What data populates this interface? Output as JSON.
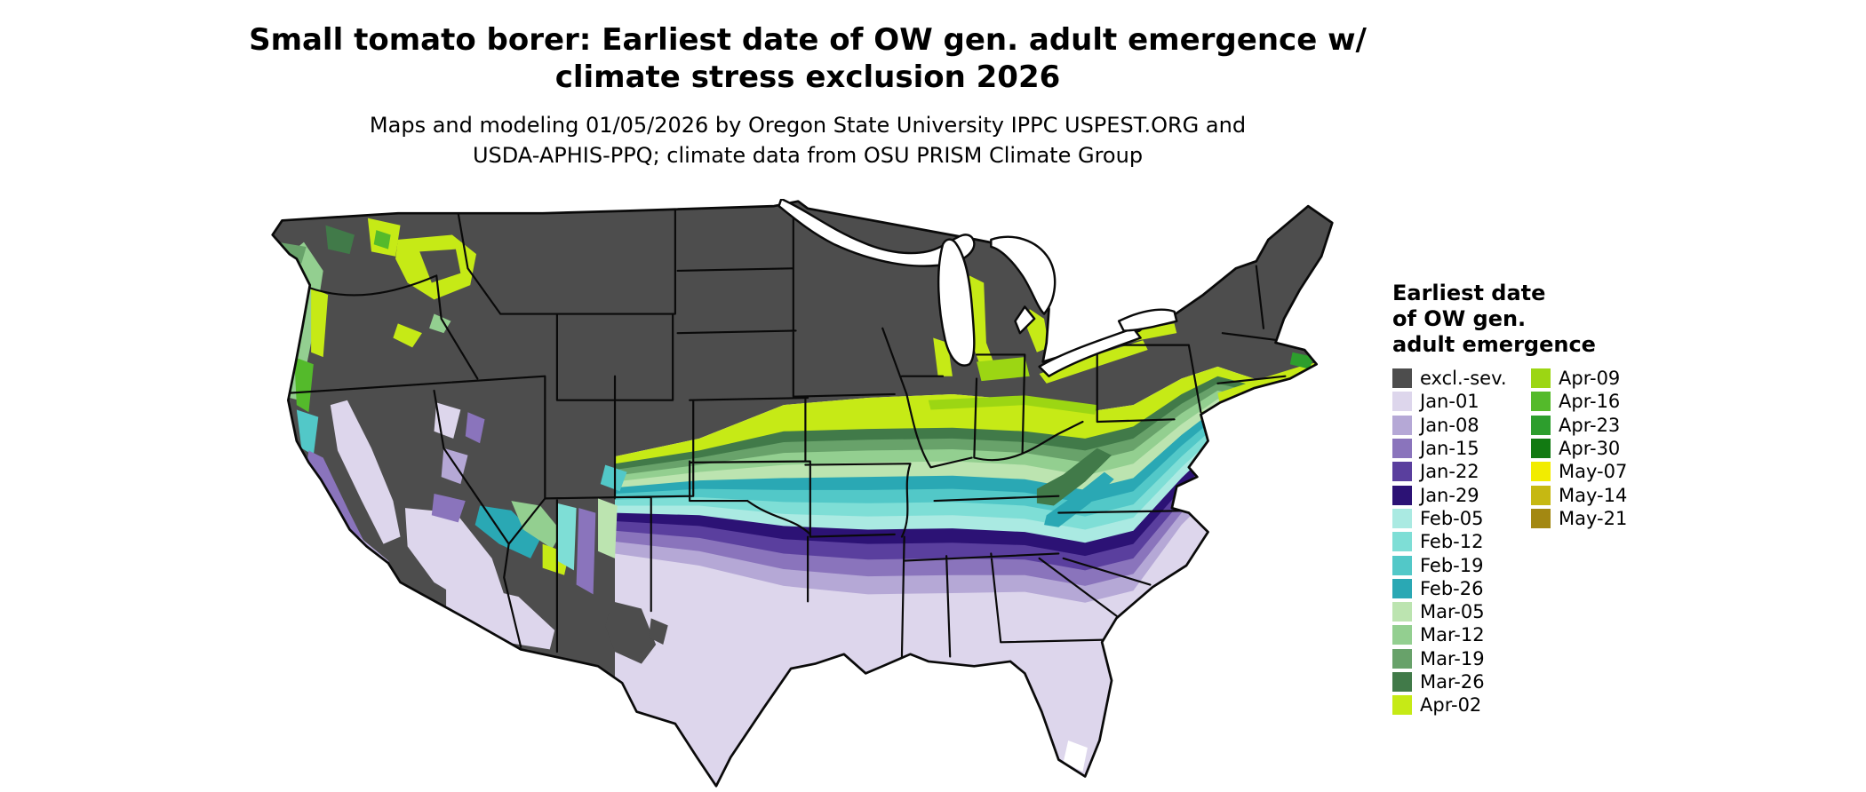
{
  "title": {
    "line1": "Small tomato borer: Earliest date of OW gen. adult emergence w/",
    "line2": "climate stress exclusion 2026"
  },
  "subtitle": {
    "line1": "Maps and modeling 01/05/2026 by Oregon State University IPPC USPEST.ORG and",
    "line2": "USDA-APHIS-PPQ; climate data from OSU PRISM Climate Group"
  },
  "legend": {
    "title_line1": "Earliest date",
    "title_line2": "of OW gen.",
    "title_line3": "adult emergence",
    "column1": [
      {
        "label": "excl.-sev.",
        "key": "excl"
      },
      {
        "label": "Jan-01",
        "key": "jan01"
      },
      {
        "label": "Jan-08",
        "key": "jan08"
      },
      {
        "label": "Jan-15",
        "key": "jan15"
      },
      {
        "label": "Jan-22",
        "key": "jan22"
      },
      {
        "label": "Jan-29",
        "key": "jan29"
      },
      {
        "label": "Feb-05",
        "key": "feb05"
      },
      {
        "label": "Feb-12",
        "key": "feb12"
      },
      {
        "label": "Feb-19",
        "key": "feb19"
      },
      {
        "label": "Feb-26",
        "key": "feb26"
      },
      {
        "label": "Mar-05",
        "key": "mar05"
      },
      {
        "label": "Mar-12",
        "key": "mar12"
      },
      {
        "label": "Mar-19",
        "key": "mar19"
      },
      {
        "label": "Mar-26",
        "key": "mar26"
      },
      {
        "label": "Apr-02",
        "key": "apr02"
      }
    ],
    "column2": [
      {
        "label": "Apr-09",
        "key": "apr09"
      },
      {
        "label": "Apr-16",
        "key": "apr16"
      },
      {
        "label": "Apr-23",
        "key": "apr23"
      },
      {
        "label": "Apr-30",
        "key": "apr30"
      },
      {
        "label": "May-07",
        "key": "may07"
      },
      {
        "label": "May-14",
        "key": "may14"
      },
      {
        "label": "May-21",
        "key": "may21"
      }
    ]
  },
  "colors": {
    "excl": "#4d4d4d",
    "jan01": "#ddd6ec",
    "jan08": "#b5a8d6",
    "jan15": "#8a74bc",
    "jan22": "#5a3f9e",
    "jan29": "#2c1275",
    "feb05": "#aaeae2",
    "feb12": "#7eded6",
    "feb19": "#52c8c8",
    "feb26": "#2aa8b4",
    "mar05": "#bce4b0",
    "mar12": "#93cf90",
    "mar19": "#68a26a",
    "mar26": "#417a49",
    "apr02": "#c6ea16",
    "apr09": "#9cd613",
    "apr16": "#54ba2b",
    "apr23": "#2d9e2d",
    "apr30": "#127a12",
    "may07": "#f2ec00",
    "may14": "#c6b812",
    "may21": "#a38812",
    "white": "#ffffff",
    "border": "#0a0a0a"
  }
}
